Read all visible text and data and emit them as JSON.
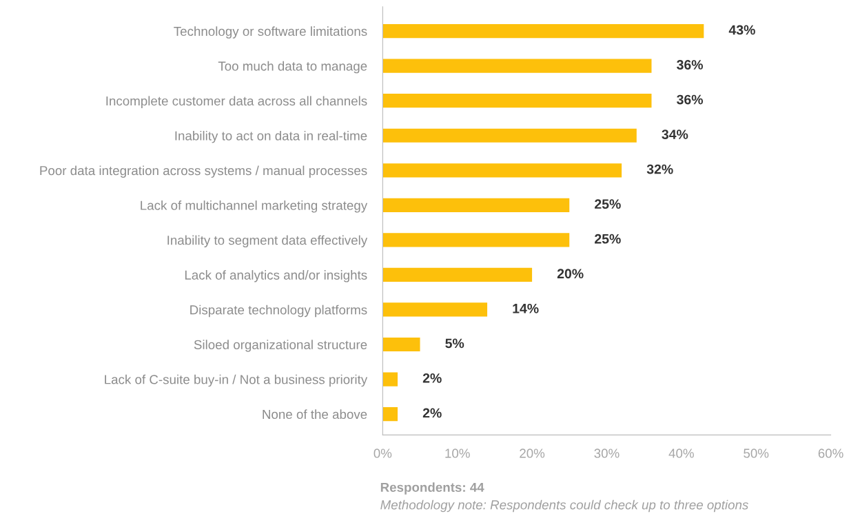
{
  "chart_data": {
    "type": "bar",
    "orientation": "horizontal",
    "categories": [
      "Technology or software limitations",
      "Too much data to manage",
      "Incomplete customer data across all channels",
      "Inability to act on data in real-time",
      "Poor data integration across systems / manual processes",
      "Lack of multichannel marketing strategy",
      "Inability to segment data effectively",
      "Lack of analytics and/or insights",
      "Disparate technology platforms",
      "Siloed organizational structure",
      "Lack of C-suite buy-in / Not a business priority",
      "None of the above"
    ],
    "values": [
      43,
      36,
      36,
      34,
      32,
      25,
      25,
      20,
      14,
      5,
      2,
      2
    ],
    "color": "#fdc00b",
    "value_labels": [
      "43%",
      "36%",
      "36%",
      "34%",
      "32%",
      "25%",
      "25%",
      "20%",
      "14%",
      "5%",
      "2%",
      "2%"
    ],
    "xlim": [
      0,
      60
    ],
    "xticks": [
      {
        "value": 0,
        "label": "0%"
      },
      {
        "value": 10,
        "label": "10%"
      },
      {
        "value": 20,
        "label": "20%"
      },
      {
        "value": 30,
        "label": "30%"
      },
      {
        "value": 40,
        "label": "40%"
      },
      {
        "value": 50,
        "label": "50%"
      },
      {
        "value": 60,
        "label": "60%"
      }
    ],
    "grid": false,
    "legend": false,
    "annotations": [
      "Respondents: 44",
      "Methodology note: Respondents could check up to three options"
    ]
  }
}
